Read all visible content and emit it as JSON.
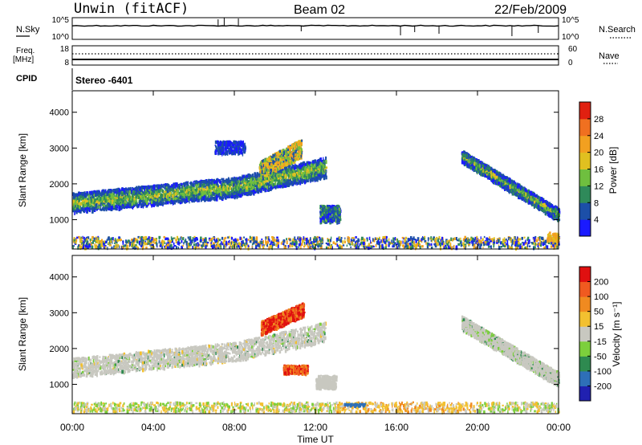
{
  "header": {
    "station": "Unwin (fitACF)",
    "beam": "Beam 02",
    "date": "22/Feb/2009"
  },
  "top_panels": {
    "nsky_label": "N.Sky",
    "nsky_ticks": [
      "10^5",
      "10^0"
    ],
    "nsearch_label": "N.Search",
    "nsearch_ticks": [
      "10^5",
      "10^0"
    ],
    "freq_label": "Freq.",
    "freq_unit": "[MHz]",
    "freq_ticks": [
      "18",
      "8"
    ],
    "nave_label": "Nave",
    "nave_ticks": [
      "60",
      "0"
    ],
    "cpid_label": "CPID",
    "cpid_value": "Stereo -6401"
  },
  "chart_data": [
    {
      "type": "heatmap",
      "name": "power",
      "ylabel": "Slant Range [km]",
      "yticks": [
        1000,
        2000,
        3000,
        4000
      ],
      "ylim": [
        180,
        4600
      ],
      "x_hours": [
        0,
        24
      ],
      "xticks": [
        "00:00",
        "04:00",
        "08:00",
        "12:00",
        "16:00",
        "20:00",
        "00:00"
      ],
      "colorbar": {
        "label": "Power [dB]",
        "ticks": [
          4,
          8,
          12,
          16,
          20,
          24,
          28
        ],
        "colors": [
          "#1a1aff",
          "#1c4fa8",
          "#2f8a5a",
          "#6fbf3f",
          "#e0c020",
          "#f2a020",
          "#f07020",
          "#e02010"
        ]
      }
    },
    {
      "type": "heatmap",
      "name": "velocity",
      "ylabel": "Slant Range [km]",
      "yticks": [
        1000,
        2000,
        3000,
        4000
      ],
      "ylim": [
        180,
        4600
      ],
      "x_hours": [
        0,
        24
      ],
      "xticks": [
        "00:00",
        "04:00",
        "08:00",
        "12:00",
        "16:00",
        "20:00",
        "00:00"
      ],
      "xlabel": "Time UT",
      "colorbar": {
        "label": "Velocity [m s⁻¹]",
        "ticks": [
          "200",
          "100",
          "50",
          "15",
          "-15",
          "-50",
          "-100",
          "-200"
        ],
        "colors": [
          "#2020b0",
          "#2e6fb8",
          "#2e8a50",
          "#7ccf3c",
          "#c8c8c0",
          "#f2c030",
          "#f08a20",
          "#f05a20",
          "#e01010"
        ]
      }
    }
  ]
}
